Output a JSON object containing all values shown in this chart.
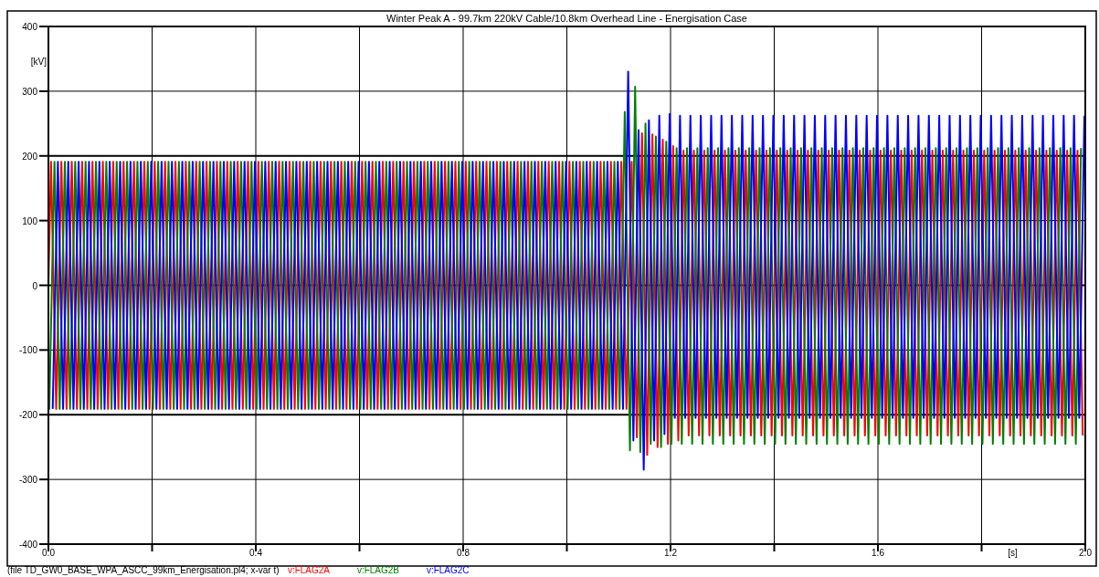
{
  "chart_data": {
    "type": "line",
    "title": "Winter Peak A - 99.7km 220kV Cable/10.8km Overhead Line - Energisation Case",
    "xlabel": "[s]",
    "ylabel": "[kV]",
    "annotations": [
      "(file TD_GW0_BASE_WPA_ASCC_99km_Energisation.pl4; x-var t)"
    ],
    "xlim": [
      0,
      2
    ],
    "ylim": [
      -400,
      400
    ],
    "xticks": [
      {
        "value": 0,
        "label": "0.0"
      },
      {
        "value": 0.2,
        "label": null
      },
      {
        "value": 0.4,
        "label": "0.4"
      },
      {
        "value": 0.6,
        "label": null
      },
      {
        "value": 0.8,
        "label": "0.8"
      },
      {
        "value": 1.0,
        "label": null
      },
      {
        "value": 1.2,
        "label": "1.2"
      },
      {
        "value": 1.4,
        "label": null
      },
      {
        "value": 1.6,
        "label": "1.6"
      },
      {
        "value": 1.8,
        "label": null
      },
      {
        "value": 2.0,
        "label": "2.0"
      }
    ],
    "yticks": [
      -400,
      -300,
      -200,
      -100,
      0,
      100,
      200,
      300,
      400
    ],
    "grid": true,
    "legend": "bottom left",
    "series": [
      {
        "name": "v:FLAG2A",
        "color": "#ff0000",
        "x": [
          0,
          0.005,
          0.015,
          0.025,
          0.035,
          0.045,
          0.055,
          0.065,
          0.075,
          0.085,
          0.095,
          0.105,
          0.115,
          0.125,
          0.135,
          0.145,
          0.155,
          0.165,
          0.175,
          0.185,
          0.195,
          0.205,
          0.215,
          0.225,
          0.235,
          0.245,
          0.255,
          0.265,
          0.275,
          0.285,
          0.295,
          0.305,
          0.315,
          0.325,
          0.335,
          0.345,
          0.355,
          0.365,
          0.375,
          0.385,
          0.395,
          0.405,
          0.415,
          0.425,
          0.435,
          0.445,
          0.455,
          0.465,
          0.475,
          0.485,
          0.495,
          0.505,
          0.515,
          0.525,
          0.535,
          0.545,
          0.555,
          0.565,
          0.575,
          0.585,
          0.595,
          0.605,
          0.615,
          0.625,
          0.635,
          0.645,
          0.655,
          0.665,
          0.675,
          0.685,
          0.695,
          0.705,
          0.715,
          0.725,
          0.735,
          0.745,
          0.755,
          0.765,
          0.775,
          0.785,
          0.795,
          0.805,
          0.815,
          0.825,
          0.835,
          0.845,
          0.855,
          0.865,
          0.875,
          0.885,
          0.895,
          0.905,
          0.915,
          0.925,
          0.935,
          0.945,
          0.955,
          0.965,
          0.975,
          0.985,
          0.995,
          1.005,
          1.015,
          1.025,
          1.035,
          1.045,
          1.055,
          1.065,
          1.075,
          1.085,
          1.095,
          1.105,
          1.115,
          1.125,
          1.135,
          1.145,
          1.155,
          1.165,
          1.175,
          1.185,
          1.195,
          1.205,
          1.215,
          1.225,
          1.235,
          1.245,
          1.255,
          1.265,
          1.275,
          1.285,
          1.295,
          1.305,
          1.315,
          1.325,
          1.335,
          1.345,
          1.355,
          1.365,
          1.375,
          1.385,
          1.395,
          1.405,
          1.415,
          1.425,
          1.435,
          1.445,
          1.455,
          1.465,
          1.475,
          1.485,
          1.495,
          1.505,
          1.515,
          1.525,
          1.535,
          1.545,
          1.555,
          1.565,
          1.575,
          1.585,
          1.595,
          1.605,
          1.615,
          1.625,
          1.635,
          1.645,
          1.655,
          1.665,
          1.675,
          1.685,
          1.695,
          1.705,
          1.715,
          1.725,
          1.735,
          1.745,
          1.755,
          1.765,
          1.775,
          1.785,
          1.795,
          1.805,
          1.815,
          1.825,
          1.835,
          1.845,
          1.855,
          1.865,
          1.875,
          1.885,
          1.895,
          1.905,
          1.915,
          1.925,
          1.935,
          1.945,
          1.955,
          1.965,
          1.975,
          1.985,
          1.995
        ],
        "values": [
          0,
          191,
          -191,
          191,
          -191,
          191,
          -191,
          191,
          -191,
          191,
          -191,
          191,
          -191,
          191,
          -191,
          191,
          -191,
          191,
          -191,
          191,
          -191,
          191,
          -191,
          191,
          -191,
          191,
          -191,
          191,
          -191,
          191,
          -191,
          191,
          -191,
          191,
          -191,
          191,
          -191,
          191,
          -191,
          191,
          -191,
          191,
          -191,
          191,
          -191,
          191,
          -191,
          191,
          -191,
          191,
          -191,
          191,
          -191,
          191,
          -191,
          191,
          -191,
          191,
          -191,
          191,
          -191,
          191,
          -191,
          191,
          -191,
          191,
          -191,
          191,
          -191,
          191,
          -191,
          191,
          -191,
          191,
          -191,
          191,
          -191,
          191,
          -191,
          191,
          -191,
          191,
          -191,
          191,
          -191,
          191,
          -191,
          191,
          -191,
          191,
          -191,
          191,
          -191,
          191,
          -191,
          191,
          -191,
          191,
          -191,
          191,
          -191,
          191,
          -191,
          191,
          -191,
          191,
          -191,
          191,
          -191,
          191,
          -191,
          191,
          -191,
          191,
          -235,
          235,
          -262,
          233,
          -250,
          225,
          -245,
          215,
          -240,
          208,
          -232,
          208,
          -232,
          208,
          -232,
          208,
          -232,
          208,
          -232,
          208,
          -232,
          208,
          -232,
          208,
          -232,
          208,
          -232,
          208,
          -232,
          208,
          -232,
          208,
          -232,
          208,
          -232,
          208,
          -232,
          208,
          -232,
          208,
          -232,
          208,
          -232,
          208,
          -232,
          208,
          -232,
          208,
          -232,
          208,
          -232,
          208,
          -232,
          208,
          -232,
          208,
          -232,
          208,
          -232,
          208,
          -232,
          208,
          -232,
          208,
          -232,
          208,
          -232,
          208,
          -232,
          208,
          -232,
          208,
          -232,
          208,
          -232,
          208,
          -232,
          208,
          -232,
          208,
          -232,
          208,
          -232,
          208,
          -232,
          208,
          -232
        ]
      },
      {
        "name": "v:FLAG2B",
        "color": "#008000",
        "x": [
          0,
          0.0017,
          0.0117,
          0.0217,
          0.0317,
          0.0417,
          0.0517,
          0.0617,
          0.0717,
          0.0817,
          0.0917,
          0.1017,
          0.1117,
          0.1217,
          0.1317,
          0.1417,
          0.1517,
          0.1617,
          0.1717,
          0.1817,
          0.1917,
          0.2017,
          0.2117,
          0.2217,
          0.2317,
          0.2417,
          0.2517,
          0.2617,
          0.2717,
          0.2817,
          0.2917,
          0.3017,
          0.3117,
          0.3217,
          0.3317,
          0.3417,
          0.3517,
          0.3617,
          0.3717,
          0.3817,
          0.3917,
          0.4017,
          0.4117,
          0.4217,
          0.4317,
          0.4417,
          0.4517,
          0.4617,
          0.4717,
          0.4817,
          0.4917,
          0.5017,
          0.5117,
          0.5217,
          0.5317,
          0.5417,
          0.5517,
          0.5617,
          0.5717,
          0.5817,
          0.5917,
          0.6017,
          0.6117,
          0.6217,
          0.6317,
          0.6417,
          0.6517,
          0.6617,
          0.6717,
          0.6817,
          0.6917,
          0.7017,
          0.7117,
          0.7217,
          0.7317,
          0.7417,
          0.7517,
          0.7617,
          0.7717,
          0.7817,
          0.7917,
          0.8017,
          0.8117,
          0.8217,
          0.8317,
          0.8417,
          0.8517,
          0.8617,
          0.8717,
          0.8817,
          0.8917,
          0.9017,
          0.9117,
          0.9217,
          0.9317,
          0.9417,
          0.9517,
          0.9617,
          0.9717,
          0.9817,
          0.9917,
          1.0017,
          1.0117,
          1.0217,
          1.0317,
          1.0417,
          1.0517,
          1.0617,
          1.0717,
          1.0817,
          1.0917,
          1.1017,
          1.1117,
          1.1217,
          1.1317,
          1.1417,
          1.1517,
          1.1617,
          1.1717,
          1.1817,
          1.1917,
          1.2017,
          1.2117,
          1.2217,
          1.2317,
          1.2417,
          1.2517,
          1.2617,
          1.2717,
          1.2817,
          1.2917,
          1.3017,
          1.3117,
          1.3217,
          1.3317,
          1.3417,
          1.3517,
          1.3617,
          1.3717,
          1.3817,
          1.3917,
          1.4017,
          1.4117,
          1.4217,
          1.4317,
          1.4417,
          1.4517,
          1.4617,
          1.4717,
          1.4817,
          1.4917,
          1.5017,
          1.5117,
          1.5217,
          1.5317,
          1.5417,
          1.5517,
          1.5617,
          1.5717,
          1.5817,
          1.5917,
          1.6017,
          1.6117,
          1.6217,
          1.6317,
          1.6417,
          1.6517,
          1.6617,
          1.6717,
          1.6817,
          1.6917,
          1.7017,
          1.7117,
          1.7217,
          1.7317,
          1.7417,
          1.7517,
          1.7617,
          1.7717,
          1.7817,
          1.7917,
          1.8017,
          1.8117,
          1.8217,
          1.8317,
          1.8417,
          1.8517,
          1.8617,
          1.8717,
          1.8817,
          1.8917,
          1.9017,
          1.9117,
          1.9217,
          1.9317,
          1.9417,
          1.9517,
          1.9617,
          1.9717,
          1.9817,
          1.9917
        ],
        "values": [
          -165,
          -191,
          191,
          -191,
          191,
          -191,
          191,
          -191,
          191,
          -191,
          191,
          -191,
          191,
          -191,
          191,
          -191,
          191,
          -191,
          191,
          -191,
          191,
          -191,
          191,
          -191,
          191,
          -191,
          191,
          -191,
          191,
          -191,
          191,
          -191,
          191,
          -191,
          191,
          -191,
          191,
          -191,
          191,
          -191,
          191,
          -191,
          191,
          -191,
          191,
          -191,
          191,
          -191,
          191,
          -191,
          191,
          -191,
          191,
          -191,
          191,
          -191,
          191,
          -191,
          191,
          -191,
          191,
          -191,
          191,
          -191,
          191,
          -191,
          191,
          -191,
          191,
          -191,
          191,
          -191,
          191,
          -191,
          191,
          -191,
          191,
          -191,
          191,
          -191,
          191,
          -191,
          191,
          -191,
          191,
          -191,
          191,
          -191,
          191,
          -191,
          191,
          -191,
          191,
          -191,
          191,
          -191,
          191,
          -191,
          191,
          -191,
          191,
          -191,
          191,
          -191,
          191,
          -191,
          191,
          -191,
          191,
          -191,
          191,
          -191,
          268,
          -255,
          307,
          -258,
          250,
          -245,
          230,
          -250,
          222,
          -245,
          212,
          -245,
          212,
          -245,
          212,
          -245,
          212,
          -245,
          212,
          -245,
          212,
          -245,
          212,
          -245,
          212,
          -245,
          212,
          -245,
          212,
          -245,
          212,
          -245,
          212,
          -245,
          212,
          -245,
          212,
          -245,
          212,
          -245,
          212,
          -245,
          212,
          -245,
          212,
          -245,
          212,
          -245,
          212,
          -245,
          212,
          -245,
          212,
          -245,
          212,
          -245,
          212,
          -245,
          212,
          -245,
          212,
          -245,
          212,
          -245,
          212,
          -245,
          212,
          -245,
          212,
          -245,
          212,
          -245,
          212,
          -245,
          212,
          -245,
          212,
          -245,
          212,
          -245,
          212,
          -245,
          212,
          -245,
          212,
          -245,
          212,
          -245,
          212
        ]
      },
      {
        "name": "v:FLAG2C",
        "color": "#0000ff",
        "x": [
          0.0083,
          0.0183,
          0.0283,
          0.0383,
          0.0483,
          0.0583,
          0.0683,
          0.0783,
          0.0883,
          0.0983,
          0.1083,
          0.1183,
          0.1283,
          0.1383,
          0.1483,
          0.1583,
          0.1683,
          0.1783,
          0.1883,
          0.1983,
          0.2083,
          0.2183,
          0.2283,
          0.2383,
          0.2483,
          0.2583,
          0.2683,
          0.2783,
          0.2883,
          0.2983,
          0.3083,
          0.3183,
          0.3283,
          0.3383,
          0.3483,
          0.3583,
          0.3683,
          0.3783,
          0.3883,
          0.3983,
          0.4083,
          0.4183,
          0.4283,
          0.4383,
          0.4483,
          0.4583,
          0.4683,
          0.4783,
          0.4883,
          0.4983,
          0.5083,
          0.5183,
          0.5283,
          0.5383,
          0.5483,
          0.5583,
          0.5683,
          0.5783,
          0.5883,
          0.5983,
          0.6083,
          0.6183,
          0.6283,
          0.6383,
          0.6483,
          0.6583,
          0.6683,
          0.6783,
          0.6883,
          0.6983,
          0.7083,
          0.7183,
          0.7283,
          0.7383,
          0.7483,
          0.7583,
          0.7683,
          0.7783,
          0.7883,
          0.7983,
          0.8083,
          0.8183,
          0.8283,
          0.8383,
          0.8483,
          0.8583,
          0.8683,
          0.8783,
          0.8883,
          0.8983,
          0.9083,
          0.9183,
          0.9283,
          0.9383,
          0.9483,
          0.9583,
          0.9683,
          0.9783,
          0.9883,
          0.9983,
          1.0083,
          1.0183,
          1.0283,
          1.0383,
          1.0483,
          1.0583,
          1.0683,
          1.0783,
          1.0883,
          1.0983,
          1.1083,
          1.1183,
          1.1283,
          1.1383,
          1.1483,
          1.1583,
          1.1683,
          1.1783,
          1.1883,
          1.1983,
          1.2083,
          1.2183,
          1.2283,
          1.2383,
          1.2483,
          1.2583,
          1.2683,
          1.2783,
          1.2883,
          1.2983,
          1.3083,
          1.3183,
          1.3283,
          1.3383,
          1.3483,
          1.3583,
          1.3683,
          1.3783,
          1.3883,
          1.3983,
          1.4083,
          1.4183,
          1.4283,
          1.4383,
          1.4483,
          1.4583,
          1.4683,
          1.4783,
          1.4883,
          1.4983,
          1.5083,
          1.5183,
          1.5283,
          1.5383,
          1.5483,
          1.5583,
          1.5683,
          1.5783,
          1.5883,
          1.5983,
          1.6083,
          1.6183,
          1.6283,
          1.6383,
          1.6483,
          1.6583,
          1.6683,
          1.6783,
          1.6883,
          1.6983,
          1.7083,
          1.7183,
          1.7283,
          1.7383,
          1.7483,
          1.7583,
          1.7683,
          1.7783,
          1.7883,
          1.7983,
          1.8083,
          1.8183,
          1.8283,
          1.8383,
          1.8483,
          1.8583,
          1.8683,
          1.8783,
          1.8883,
          1.8983,
          1.9083,
          1.9183,
          1.9283,
          1.9383,
          1.9483,
          1.9583,
          1.9683,
          1.9783,
          1.9883,
          1.9983
        ],
        "values": [
          -191,
          191,
          -191,
          191,
          -191,
          191,
          -191,
          191,
          -191,
          191,
          -191,
          191,
          -191,
          191,
          -191,
          191,
          -191,
          191,
          -191,
          191,
          -191,
          191,
          -191,
          191,
          -191,
          191,
          -191,
          191,
          -191,
          191,
          -191,
          191,
          -191,
          191,
          -191,
          191,
          -191,
          191,
          -191,
          191,
          -191,
          191,
          -191,
          191,
          -191,
          191,
          -191,
          191,
          -191,
          191,
          -191,
          191,
          -191,
          191,
          -191,
          191,
          -191,
          191,
          -191,
          191,
          -191,
          191,
          -191,
          191,
          -191,
          191,
          -191,
          191,
          -191,
          191,
          -191,
          191,
          -191,
          191,
          -191,
          191,
          -191,
          191,
          -191,
          191,
          -191,
          191,
          -191,
          191,
          -191,
          191,
          -191,
          191,
          -191,
          191,
          -191,
          191,
          -191,
          191,
          -191,
          191,
          -191,
          191,
          -191,
          191,
          -191,
          191,
          -191,
          191,
          -191,
          191,
          -191,
          191,
          -191,
          191,
          -191,
          330,
          -240,
          240,
          -285,
          255,
          -240,
          262,
          -230,
          265,
          -205,
          262,
          -205,
          262,
          -205,
          262,
          -205,
          262,
          -205,
          262,
          -205,
          262,
          -205,
          262,
          -205,
          262,
          -205,
          262,
          -205,
          262,
          -205,
          262,
          -205,
          262,
          -205,
          262,
          -205,
          262,
          -205,
          262,
          -205,
          262,
          -205,
          262,
          -205,
          262,
          -205,
          262,
          -205,
          262,
          -205,
          262,
          -205,
          262,
          -205,
          262,
          -205,
          262,
          -205,
          262,
          -205,
          262,
          -205,
          262,
          -205,
          262,
          -205,
          262,
          -205,
          262,
          -205,
          262,
          -205,
          262,
          -205,
          262,
          -205,
          262,
          -205,
          262,
          -205,
          262,
          -205,
          262,
          -205,
          262,
          -205,
          262,
          -205,
          262
        ]
      }
    ]
  }
}
